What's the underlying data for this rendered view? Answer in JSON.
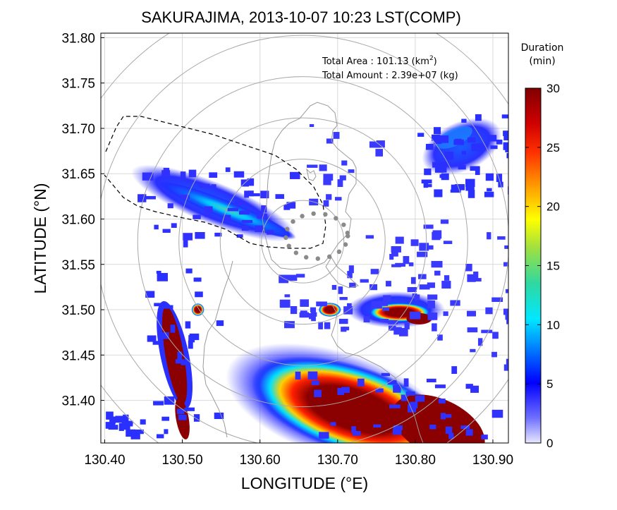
{
  "chart_data": {
    "type": "heatmap",
    "title": "SAKURAJIMA, 2013-10-07 10:23 LST(COMP)",
    "xlabel": "LONGITUDE (°E)",
    "ylabel": "LATITUDE (°N)",
    "xlim": [
      130.395,
      130.92
    ],
    "ylim": [
      31.353,
      31.805
    ],
    "xticks": [
      "130.40",
      "130.50",
      "130.60",
      "130.70",
      "130.80",
      "130.90"
    ],
    "yticks": [
      "31.40",
      "31.45",
      "31.50",
      "31.55",
      "31.60",
      "31.65",
      "31.70",
      "31.75",
      "31.80"
    ],
    "grid": true,
    "annotations": {
      "area_label": "Total Area   : 101.13 (km",
      "area_sup": "2",
      "area_close": ")",
      "amount_label": "Total Amount : 2.39e+07 (kg)"
    },
    "colorbar": {
      "label_line1": "Duration",
      "label_line2": "(min)",
      "min": 0,
      "max": 30,
      "ticks": [
        "0",
        "5",
        "10",
        "15",
        "20",
        "25",
        "30"
      ]
    },
    "range_rings_center": [
      130.655,
      31.575
    ],
    "range_rings_km": [
      5,
      10,
      15,
      20,
      25,
      30
    ],
    "regions": [
      {
        "name": "plume-west-nw",
        "lon": [
          130.44,
          130.64
        ],
        "lat": [
          31.575,
          31.66
        ],
        "peak_min": 11
      },
      {
        "name": "band-west-south",
        "lon": [
          130.45,
          130.53
        ],
        "lat": [
          31.36,
          31.55
        ],
        "peak_min": 30
      },
      {
        "name": "cell-south",
        "lon": [
          130.67,
          130.9
        ],
        "lat": [
          31.36,
          31.43
        ],
        "peak_min": 30
      },
      {
        "name": "cell-east",
        "lon": [
          130.74,
          130.81
        ],
        "lat": [
          31.48,
          31.52
        ],
        "peak_min": 30
      },
      {
        "name": "spot-center",
        "lon": [
          130.68,
          130.7
        ],
        "lat": [
          31.49,
          31.51
        ],
        "peak_min": 30
      },
      {
        "name": "cluster-northeast",
        "lon": [
          130.8,
          130.92
        ],
        "lat": [
          31.63,
          31.72
        ],
        "peak_min": 7
      }
    ]
  },
  "colors": {
    "low": "#c8c8ff",
    "blue": "#2b2bff",
    "cyan": "#00d8ff",
    "green": "#4cd070",
    "yellow": "#ffea00",
    "orange": "#ff8c00",
    "red": "#ee1010",
    "darkred": "#8b0000"
  }
}
